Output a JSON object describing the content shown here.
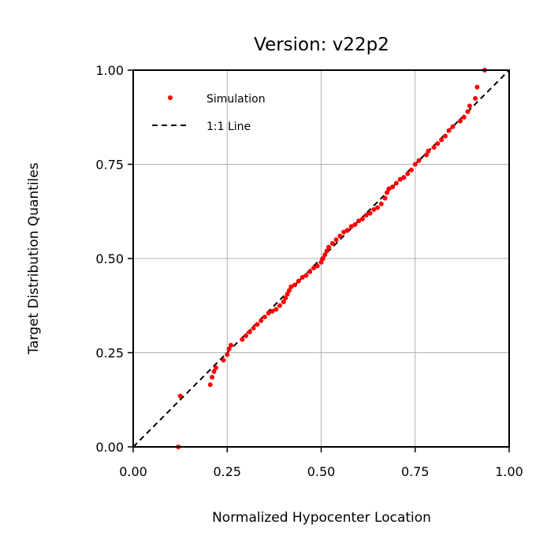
{
  "chart_data": {
    "type": "scatter",
    "title": "Version: v22p2",
    "xlabel": "Normalized Hypocenter Location",
    "ylabel": "Target Distribution Quantiles",
    "xlim": [
      0,
      1
    ],
    "ylim": [
      0,
      1
    ],
    "xticks": [
      "0.00",
      "0.25",
      "0.50",
      "0.75",
      "1.00"
    ],
    "yticks": [
      "0.00",
      "0.25",
      "0.50",
      "0.75",
      "1.00"
    ],
    "grid": true,
    "legend": {
      "placement": "top-left",
      "entries": [
        {
          "label": "Simulation",
          "style": "marker"
        },
        {
          "label": "1:1 Line",
          "style": "dashed-line"
        }
      ]
    },
    "series": [
      {
        "name": "Simulation",
        "color": "#ff0000",
        "points": [
          [
            0.12,
            0.0
          ],
          [
            0.125,
            0.135
          ],
          [
            0.205,
            0.165
          ],
          [
            0.21,
            0.185
          ],
          [
            0.215,
            0.2
          ],
          [
            0.22,
            0.21
          ],
          [
            0.24,
            0.23
          ],
          [
            0.25,
            0.245
          ],
          [
            0.255,
            0.26
          ],
          [
            0.26,
            0.27
          ],
          [
            0.29,
            0.285
          ],
          [
            0.3,
            0.295
          ],
          [
            0.31,
            0.305
          ],
          [
            0.32,
            0.315
          ],
          [
            0.33,
            0.325
          ],
          [
            0.34,
            0.335
          ],
          [
            0.35,
            0.345
          ],
          [
            0.36,
            0.355
          ],
          [
            0.37,
            0.36
          ],
          [
            0.38,
            0.365
          ],
          [
            0.39,
            0.375
          ],
          [
            0.4,
            0.385
          ],
          [
            0.405,
            0.395
          ],
          [
            0.41,
            0.405
          ],
          [
            0.415,
            0.415
          ],
          [
            0.42,
            0.425
          ],
          [
            0.43,
            0.43
          ],
          [
            0.44,
            0.44
          ],
          [
            0.45,
            0.45
          ],
          [
            0.46,
            0.455
          ],
          [
            0.47,
            0.465
          ],
          [
            0.48,
            0.475
          ],
          [
            0.49,
            0.48
          ],
          [
            0.5,
            0.49
          ],
          [
            0.505,
            0.5
          ],
          [
            0.51,
            0.51
          ],
          [
            0.515,
            0.52
          ],
          [
            0.52,
            0.53
          ],
          [
            0.53,
            0.54
          ],
          [
            0.54,
            0.55
          ],
          [
            0.55,
            0.56
          ],
          [
            0.56,
            0.57
          ],
          [
            0.57,
            0.575
          ],
          [
            0.58,
            0.585
          ],
          [
            0.59,
            0.59
          ],
          [
            0.6,
            0.6
          ],
          [
            0.61,
            0.605
          ],
          [
            0.62,
            0.615
          ],
          [
            0.63,
            0.62
          ],
          [
            0.64,
            0.63
          ],
          [
            0.65,
            0.635
          ],
          [
            0.66,
            0.645
          ],
          [
            0.67,
            0.66
          ],
          [
            0.675,
            0.675
          ],
          [
            0.68,
            0.685
          ],
          [
            0.69,
            0.69
          ],
          [
            0.7,
            0.7
          ],
          [
            0.71,
            0.71
          ],
          [
            0.72,
            0.715
          ],
          [
            0.73,
            0.725
          ],
          [
            0.74,
            0.735
          ],
          [
            0.75,
            0.75
          ],
          [
            0.76,
            0.76
          ],
          [
            0.78,
            0.775
          ],
          [
            0.785,
            0.785
          ],
          [
            0.8,
            0.795
          ],
          [
            0.81,
            0.805
          ],
          [
            0.82,
            0.815
          ],
          [
            0.83,
            0.825
          ],
          [
            0.84,
            0.84
          ],
          [
            0.85,
            0.85
          ],
          [
            0.87,
            0.865
          ],
          [
            0.88,
            0.875
          ],
          [
            0.89,
            0.89
          ],
          [
            0.895,
            0.905
          ],
          [
            0.91,
            0.925
          ],
          [
            0.915,
            0.955
          ],
          [
            0.935,
            1.0
          ]
        ]
      }
    ],
    "reference_line": {
      "name": "1:1 Line",
      "from": [
        0,
        0
      ],
      "to": [
        1,
        1
      ],
      "color": "#000000"
    }
  }
}
